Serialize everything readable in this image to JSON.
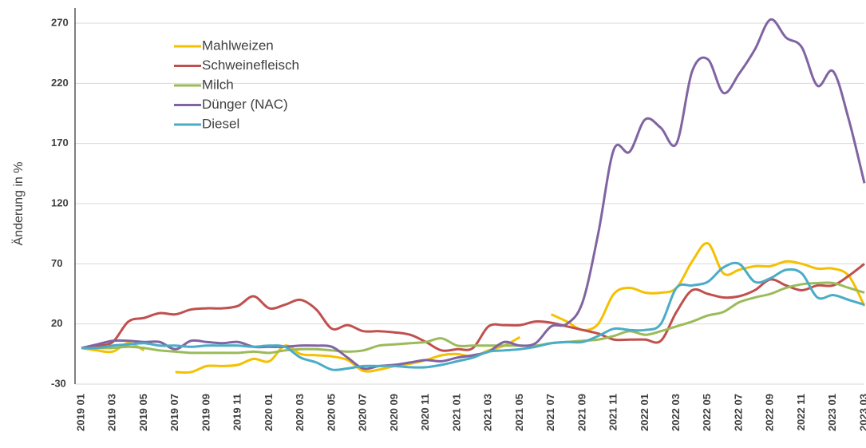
{
  "chart_data": {
    "type": "line",
    "ylabel": "Änderung in %",
    "categories": [
      "2019 01",
      null,
      "2019 03",
      null,
      "2019 05",
      null,
      "2019 07",
      null,
      "2019 09",
      null,
      "2019 11",
      null,
      "2020 01",
      null,
      "2020 03",
      null,
      "2020 05",
      null,
      "2020 07",
      null,
      "2020 09",
      null,
      "2020 11",
      null,
      "2021 01",
      null,
      "2021 03",
      null,
      "2021 05",
      null,
      "2021 07",
      null,
      "2021 09",
      null,
      "2021 11",
      null,
      "2022 01",
      null,
      "2022 03",
      null,
      "2022 05",
      null,
      "2022 07",
      null,
      "2022 09",
      null,
      "2022 11",
      null,
      "2023 01",
      null,
      "2023 03"
    ],
    "ylim": [
      -30,
      270
    ],
    "yticks": [
      -30,
      20,
      70,
      120,
      170,
      220,
      270
    ],
    "grid": true,
    "legend": "top-left",
    "series": [
      {
        "name": "Mahlweizen",
        "color": "#f5c000",
        "values": [
          0,
          -2,
          -3,
          4,
          -2,
          null,
          -20,
          -20,
          -15,
          -15,
          -14,
          -9,
          -11,
          2,
          -5,
          -6,
          -7,
          -10,
          -19,
          -18,
          -15,
          -13,
          -10,
          -6,
          -5,
          -7,
          -2,
          2,
          9,
          null,
          28,
          22,
          15,
          20,
          45,
          50,
          46,
          46,
          50,
          72,
          87,
          62,
          65,
          68,
          68,
          72,
          70,
          66,
          66,
          60,
          35
        ]
      },
      {
        "name": "Schweinefleisch",
        "color": "#c0504d",
        "values": [
          0,
          2,
          5,
          22,
          25,
          29,
          28,
          32,
          33,
          33,
          35,
          43,
          33,
          36,
          40,
          32,
          16,
          19,
          14,
          14,
          13,
          11,
          5,
          -2,
          -1,
          0,
          18,
          19,
          19,
          22,
          21,
          18,
          15,
          12,
          7,
          7,
          7,
          6,
          30,
          48,
          45,
          42,
          43,
          48,
          57,
          52,
          48,
          52,
          52,
          60,
          70
        ]
      },
      {
        "name": "Milch",
        "color": "#9bbb59",
        "values": [
          0,
          0,
          0,
          1,
          0,
          -2,
          -3,
          -4,
          -4,
          -4,
          -4,
          -3,
          -4,
          -2,
          -1,
          -1,
          -2,
          -3,
          -2,
          2,
          3,
          4,
          5,
          8,
          2,
          2,
          2,
          2,
          2,
          2,
          4,
          5,
          6,
          7,
          10,
          14,
          11,
          14,
          18,
          22,
          27,
          30,
          38,
          42,
          45,
          50,
          53,
          54,
          54,
          50,
          46
        ]
      },
      {
        "name": "Dünger (NAC)",
        "color": "#8064a2",
        "values": [
          0,
          3,
          6,
          6,
          5,
          5,
          -1,
          6,
          5,
          4,
          5,
          1,
          1,
          1,
          2,
          2,
          1,
          -8,
          -17,
          -15,
          -14,
          -12,
          -10,
          -11,
          -8,
          -6,
          -3,
          5,
          2,
          4,
          18,
          20,
          38,
          95,
          165,
          163,
          190,
          183,
          170,
          230,
          240,
          212,
          228,
          248,
          273,
          258,
          250,
          218,
          230,
          190,
          137
        ]
      },
      {
        "name": "Diesel",
        "color": "#4bacc6",
        "values": [
          0,
          0,
          2,
          3,
          4,
          2,
          2,
          1,
          2,
          2,
          2,
          1,
          2,
          1,
          -8,
          -12,
          -18,
          -17,
          -15,
          -15,
          -15,
          -16,
          -16,
          -14,
          -11,
          -8,
          -3,
          -2,
          -1,
          1,
          4,
          5,
          5,
          10,
          16,
          15,
          15,
          20,
          50,
          52,
          55,
          67,
          70,
          55,
          58,
          65,
          62,
          42,
          44,
          40,
          36
        ]
      }
    ]
  }
}
